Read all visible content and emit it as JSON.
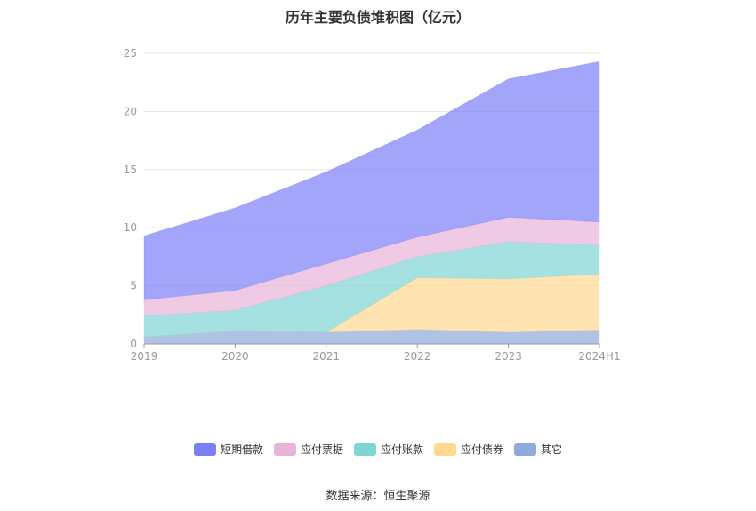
{
  "chart_data": {
    "type": "area",
    "stacked": true,
    "title": "历年主要负债堆积图（亿元）",
    "categories": [
      "2019",
      "2020",
      "2021",
      "2022",
      "2023",
      "2024H1"
    ],
    "ylim": [
      0,
      25
    ],
    "yticks": [
      "0",
      "5",
      "10",
      "15",
      "20",
      "25"
    ],
    "grid": true,
    "legend_position": "bottom",
    "series": [
      {
        "name": "其它",
        "color": "#8FAADC",
        "values": [
          0.6,
          1.1,
          1.0,
          1.25,
          1.0,
          1.2
        ]
      },
      {
        "name": "应付债券",
        "color": "#FFD990",
        "values": [
          0,
          0,
          0,
          4.45,
          4.6,
          4.8
        ]
      },
      {
        "name": "应付账款",
        "color": "#7FD4D4",
        "values": [
          1.8,
          1.8,
          4.0,
          1.8,
          3.2,
          2.5
        ]
      },
      {
        "name": "应付票据",
        "color": "#E8B4D8",
        "values": [
          1.4,
          1.7,
          1.9,
          1.7,
          2.1,
          2.0
        ]
      },
      {
        "name": "短期借款",
        "color": "#7B7FF7",
        "values": [
          5.5,
          7.1,
          7.9,
          9.2,
          11.9,
          13.8
        ]
      }
    ]
  },
  "legend_order": [
    "短期借款",
    "应付票据",
    "应付账款",
    "应付债券",
    "其它"
  ],
  "footer": {
    "source": "数据来源：恒生聚源"
  }
}
